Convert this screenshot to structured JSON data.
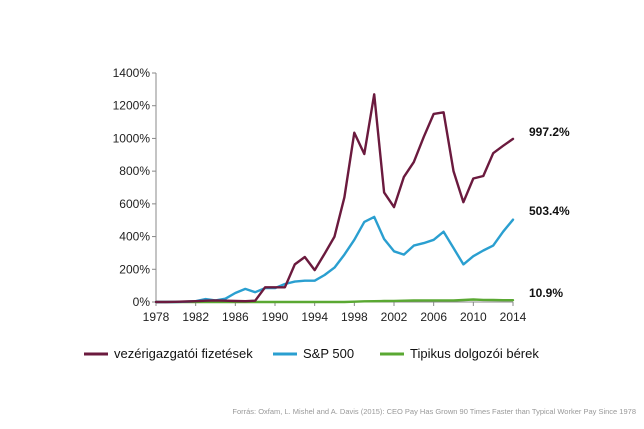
{
  "chart_data": {
    "type": "line",
    "x": [
      1978,
      1979,
      1980,
      1981,
      1982,
      1983,
      1984,
      1985,
      1986,
      1987,
      1988,
      1989,
      1990,
      1991,
      1992,
      1993,
      1994,
      1995,
      1996,
      1997,
      1998,
      1999,
      2000,
      2001,
      2002,
      2003,
      2004,
      2005,
      2006,
      2007,
      2008,
      2009,
      2010,
      2011,
      2012,
      2013,
      2014
    ],
    "x_ticks": [
      "1978",
      "1982",
      "1986",
      "1990",
      "1994",
      "1998",
      "2002",
      "2006",
      "2010",
      "2014"
    ],
    "y_ticks": [
      "0%",
      "200%",
      "400%",
      "600%",
      "800%",
      "1000%",
      "1200%",
      "1400%"
    ],
    "ylim": [
      0,
      1400
    ],
    "series": [
      {
        "name": "vezérigazgatói fizetések",
        "color": "#6b1a3e",
        "values": [
          0,
          0,
          1,
          3,
          5,
          8,
          10,
          8,
          6,
          5,
          8,
          90,
          90,
          90,
          230,
          275,
          195,
          295,
          400,
          640,
          1035,
          905,
          1270,
          670,
          580,
          765,
          855,
          1010,
          1150,
          1160,
          800,
          610,
          755,
          770,
          910,
          955,
          997.2
        ],
        "end_label": "997.2%"
      },
      {
        "name": "S&P 500",
        "color": "#2a9fd0",
        "values": [
          0,
          0,
          0,
          2,
          5,
          18,
          10,
          20,
          55,
          80,
          60,
          85,
          85,
          110,
          125,
          130,
          130,
          165,
          210,
          290,
          380,
          490,
          520,
          385,
          310,
          290,
          345,
          360,
          380,
          430,
          330,
          230,
          280,
          315,
          345,
          430,
          503.4
        ],
        "end_label": "503.4%"
      },
      {
        "name": "Tipikus dolgozói bérek",
        "color": "#5aa832",
        "values": [
          0,
          0,
          0,
          0,
          0,
          0,
          0,
          0,
          0,
          0,
          0,
          0,
          0,
          0,
          0,
          0,
          0,
          0,
          0,
          0,
          2,
          4,
          5,
          6,
          7,
          8,
          9,
          10,
          10,
          10,
          10,
          12,
          15,
          13,
          12,
          11,
          10.9
        ],
        "end_label": "10.9%"
      }
    ],
    "legend_position": "bottom",
    "grid": false
  },
  "source_note": "Forrás: Oxfam,   L. Mishel and A. Davis (2015): CEO Pay Has Grown 90 Times Faster than Typical Worker Pay Since 1978"
}
